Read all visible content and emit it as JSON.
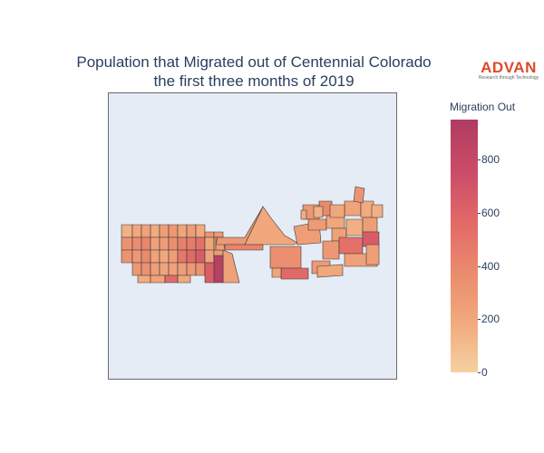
{
  "title": {
    "line1": "Population that Migrated out of Centennial Colorado",
    "line2": "the first three months of 2019"
  },
  "logo": {
    "brand": "ADVAN",
    "tagline": "Research through Technology"
  },
  "colorbar": {
    "title": "Migration Out",
    "ticks": [
      "0",
      "200",
      "400",
      "600",
      "800"
    ],
    "range": [
      0,
      950
    ],
    "colorscale": [
      "#f5d1a1",
      "#f1a97d",
      "#ea8a6d",
      "#e16868",
      "#c94c68",
      "#b03c62"
    ]
  },
  "colors": {
    "map_background": "#e5ecf6",
    "region_border": "#3a3a3a"
  },
  "regions": [
    {
      "v": 150
    },
    {
      "v": 200
    },
    {
      "v": 230
    },
    {
      "v": 180
    },
    {
      "v": 260
    },
    {
      "v": 300
    },
    {
      "v": 220
    },
    {
      "v": 260
    },
    {
      "v": 190
    },
    {
      "v": 310
    },
    {
      "v": 280
    },
    {
      "v": 330
    },
    {
      "v": 360
    },
    {
      "v": 400
    },
    {
      "v": 240
    },
    {
      "v": 270
    },
    {
      "v": 350
    },
    {
      "v": 430
    },
    {
      "v": 460
    },
    {
      "v": 520
    },
    {
      "v": 210
    },
    {
      "v": 250
    },
    {
      "v": 320
    },
    {
      "v": 290
    },
    {
      "v": 380
    },
    {
      "v": 240
    },
    {
      "v": 200
    },
    {
      "v": 260
    },
    {
      "v": 480
    },
    {
      "v": 560
    },
    {
      "v": 650
    },
    {
      "v": 230
    },
    {
      "v": 270
    },
    {
      "v": 300
    },
    {
      "v": 330
    },
    {
      "v": 260
    },
    {
      "v": 220
    },
    {
      "v": 240
    },
    {
      "v": 260
    },
    {
      "v": 300
    },
    {
      "v": 330
    },
    {
      "v": 380
    },
    {
      "v": 500
    },
    {
      "v": 180
    },
    {
      "v": 230
    },
    {
      "v": 560
    },
    {
      "v": 200
    },
    {
      "v": 240
    },
    {
      "v": 900
    },
    {
      "v": 640
    },
    {
      "v": 260
    },
    {
      "v": 200
    },
    {
      "v": 300
    },
    {
      "v": 420
    },
    {
      "v": 260
    },
    {
      "v": 350
    },
    {
      "v": 560
    },
    {
      "v": 300
    },
    {
      "v": 380
    },
    {
      "v": 280
    },
    {
      "v": 200
    },
    {
      "v": 220
    },
    {
      "v": 180
    },
    {
      "v": 240
    },
    {
      "v": 160
    },
    {
      "v": 260
    },
    {
      "v": 300
    },
    {
      "v": 520
    },
    {
      "v": 650
    },
    {
      "v": 240
    },
    {
      "v": 280
    },
    {
      "v": 320
    },
    {
      "v": 200
    },
    {
      "v": 220
    },
    {
      "v": 180
    },
    {
      "v": 160
    },
    {
      "v": 250
    }
  ]
}
